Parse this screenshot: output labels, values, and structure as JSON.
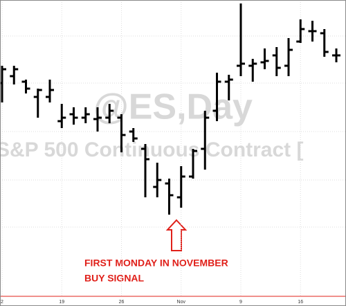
{
  "chart_data": {
    "type": "ohlc",
    "watermark": "@ES,Day",
    "watermark_subtitle": "S&P 500 Continuous Contract [",
    "annotation": [
      "FIRST MONDAY IN NOVEMBER",
      "BUY SIGNAL"
    ],
    "categories": [
      "2",
      null,
      null,
      null,
      null,
      "19",
      null,
      null,
      null,
      null,
      "26",
      null,
      null,
      null,
      null,
      "Nov",
      null,
      null,
      null,
      null,
      "9",
      null,
      null,
      null,
      null,
      "16",
      null,
      null,
      null
    ],
    "open": [
      308,
      318,
      310,
      288,
      288,
      253,
      263,
      258,
      256,
      258,
      258,
      238,
      213,
      158,
      163,
      143,
      173,
      213,
      268,
      310,
      333,
      333,
      338,
      348,
      333,
      368,
      383,
      380,
      348
    ],
    "high": [
      333,
      333,
      313,
      300,
      313,
      278,
      273,
      273,
      273,
      278,
      263,
      243,
      220,
      193,
      170,
      188,
      213,
      268,
      323,
      320,
      423,
      343,
      358,
      360,
      373,
      400,
      398,
      386,
      358
    ],
    "low": [
      280,
      306,
      293,
      258,
      280,
      243,
      248,
      250,
      238,
      250,
      208,
      223,
      143,
      143,
      118,
      128,
      170,
      183,
      253,
      283,
      318,
      310,
      328,
      318,
      318,
      366,
      368,
      346,
      338
    ],
    "close": [
      328,
      328,
      300,
      298,
      298,
      258,
      258,
      263,
      258,
      268,
      233,
      228,
      198,
      168,
      146,
      173,
      210,
      258,
      310,
      313,
      336,
      336,
      340,
      330,
      356,
      386,
      383,
      353,
      348
    ],
    "color": "#000000",
    "ylim": [
      0,
      428
    ]
  }
}
